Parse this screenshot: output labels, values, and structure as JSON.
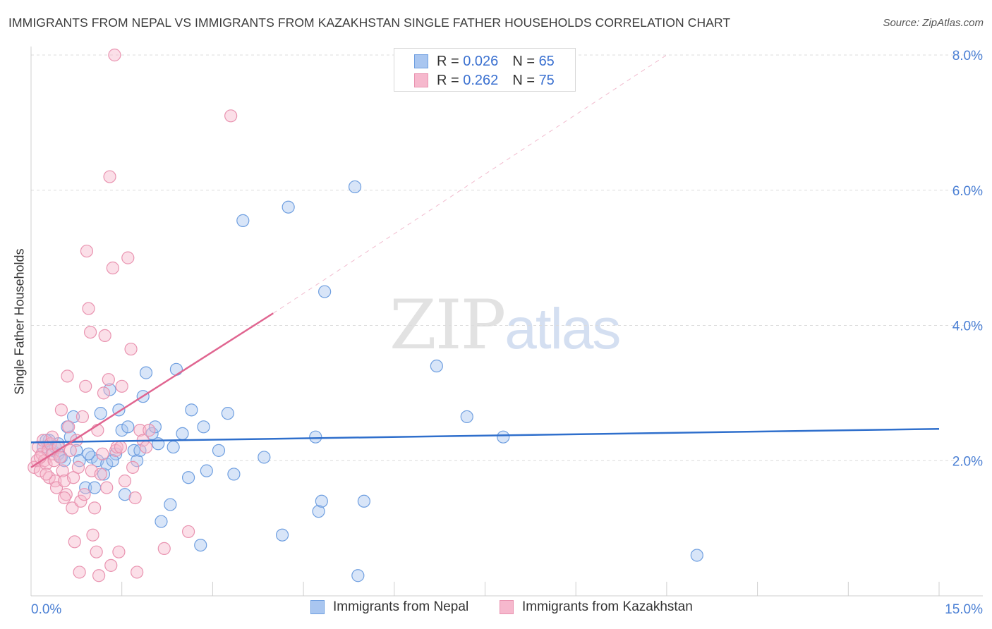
{
  "title": "IMMIGRANTS FROM NEPAL VS IMMIGRANTS FROM KAZAKHSTAN SINGLE FATHER HOUSEHOLDS CORRELATION CHART",
  "source": "Source: ZipAtlas.com",
  "watermark": {
    "zip": "ZIP",
    "atlas": "atlas"
  },
  "legend": {
    "r_label": "R =",
    "n_label": "N =",
    "series": [
      {
        "name": "Immigrants from Nepal",
        "r": "0.026",
        "n": "65"
      },
      {
        "name": "Immigrants from Kazakhstan",
        "r": "0.262",
        "n": "75"
      }
    ]
  },
  "colors": {
    "nepal_fill": "#a9c6f0",
    "nepal_stroke": "#6f9fe0",
    "nepal_line": "#2f6fcc",
    "kaz_fill": "#f6b8cd",
    "kaz_stroke": "#e993b0",
    "kaz_line": "#e06590",
    "tick_text": "#4a7fd4"
  },
  "chart_data": {
    "type": "scatter",
    "title": "IMMIGRANTS FROM NEPAL VS IMMIGRANTS FROM KAZAKHSTAN SINGLE FATHER HOUSEHOLDS CORRELATION CHART",
    "xlabel": "",
    "ylabel": "Single Father Households",
    "xlim": [
      0,
      15
    ],
    "ylim": [
      0,
      8
    ],
    "x_tick_labels": [
      "0.0%",
      "15.0%"
    ],
    "y_ticks": [
      2,
      4,
      6,
      8
    ],
    "y_tick_labels": [
      "2.0%",
      "4.0%",
      "6.0%",
      "8.0%"
    ],
    "series": [
      {
        "name": "Immigrants from Nepal",
        "r": 0.026,
        "n": 65,
        "trend": {
          "x": [
            0,
            15
          ],
          "y": [
            2.27,
            2.47
          ],
          "style": "solid"
        },
        "points": [
          [
            0.2,
            2.2
          ],
          [
            0.3,
            2.3
          ],
          [
            0.35,
            2.15
          ],
          [
            0.4,
            2.2
          ],
          [
            0.45,
            2.1
          ],
          [
            0.5,
            2.05
          ],
          [
            0.55,
            2.0
          ],
          [
            0.6,
            2.5
          ],
          [
            0.7,
            2.65
          ],
          [
            0.75,
            2.15
          ],
          [
            0.8,
            2.0
          ],
          [
            0.9,
            1.6
          ],
          [
            1.0,
            2.05
          ],
          [
            1.1,
            2.0
          ],
          [
            1.15,
            2.7
          ],
          [
            1.2,
            1.8
          ],
          [
            1.25,
            1.95
          ],
          [
            1.3,
            3.05
          ],
          [
            1.4,
            2.1
          ],
          [
            1.45,
            2.75
          ],
          [
            1.5,
            2.45
          ],
          [
            1.55,
            1.5
          ],
          [
            1.6,
            2.5
          ],
          [
            1.7,
            2.15
          ],
          [
            1.75,
            2.0
          ],
          [
            1.8,
            2.15
          ],
          [
            1.85,
            2.95
          ],
          [
            1.9,
            3.3
          ],
          [
            2.0,
            2.4
          ],
          [
            2.05,
            2.5
          ],
          [
            2.1,
            2.25
          ],
          [
            2.15,
            1.1
          ],
          [
            2.3,
            1.35
          ],
          [
            2.35,
            2.2
          ],
          [
            2.4,
            3.35
          ],
          [
            2.5,
            2.4
          ],
          [
            2.6,
            1.75
          ],
          [
            2.65,
            2.75
          ],
          [
            2.8,
            0.75
          ],
          [
            2.85,
            2.5
          ],
          [
            2.9,
            1.85
          ],
          [
            3.1,
            2.15
          ],
          [
            3.25,
            2.7
          ],
          [
            3.35,
            1.8
          ],
          [
            3.5,
            5.55
          ],
          [
            3.85,
            2.05
          ],
          [
            4.15,
            0.9
          ],
          [
            4.25,
            5.75
          ],
          [
            4.7,
            2.35
          ],
          [
            4.75,
            1.25
          ],
          [
            4.8,
            1.4
          ],
          [
            4.85,
            4.5
          ],
          [
            5.35,
            6.05
          ],
          [
            5.4,
            0.3
          ],
          [
            5.5,
            1.4
          ],
          [
            6.7,
            3.4
          ],
          [
            7.2,
            2.65
          ],
          [
            7.8,
            2.35
          ],
          [
            11.0,
            0.6
          ],
          [
            0.25,
            2.3
          ],
          [
            0.65,
            2.35
          ],
          [
            1.05,
            1.6
          ],
          [
            0.45,
            2.25
          ],
          [
            1.35,
            2.0
          ],
          [
            0.95,
            2.1
          ]
        ]
      },
      {
        "name": "Immigrants from Kazakhstan",
        "r": 0.262,
        "n": 75,
        "trend": {
          "x": [
            0,
            4.0
          ],
          "y": [
            1.9,
            4.18
          ],
          "style": "solid"
        },
        "trend_extension": {
          "x": [
            4.0,
            10.5
          ],
          "y": [
            4.18,
            8.0
          ],
          "style": "dashed"
        },
        "points": [
          [
            0.05,
            1.9
          ],
          [
            0.1,
            2.0
          ],
          [
            0.12,
            2.2
          ],
          [
            0.15,
            1.85
          ],
          [
            0.18,
            2.1
          ],
          [
            0.2,
            2.3
          ],
          [
            0.22,
            2.0
          ],
          [
            0.25,
            1.95
          ],
          [
            0.28,
            2.15
          ],
          [
            0.3,
            1.75
          ],
          [
            0.32,
            2.25
          ],
          [
            0.35,
            2.1
          ],
          [
            0.38,
            2.0
          ],
          [
            0.4,
            1.7
          ],
          [
            0.42,
            1.6
          ],
          [
            0.45,
            2.2
          ],
          [
            0.48,
            2.05
          ],
          [
            0.5,
            2.75
          ],
          [
            0.52,
            1.85
          ],
          [
            0.55,
            1.7
          ],
          [
            0.58,
            1.5
          ],
          [
            0.6,
            3.25
          ],
          [
            0.62,
            2.5
          ],
          [
            0.65,
            2.15
          ],
          [
            0.68,
            1.3
          ],
          [
            0.7,
            1.75
          ],
          [
            0.72,
            0.8
          ],
          [
            0.75,
            2.3
          ],
          [
            0.78,
            1.9
          ],
          [
            0.8,
            0.35
          ],
          [
            0.82,
            1.4
          ],
          [
            0.85,
            2.65
          ],
          [
            0.88,
            1.5
          ],
          [
            0.9,
            3.1
          ],
          [
            0.92,
            5.1
          ],
          [
            0.95,
            4.25
          ],
          [
            0.98,
            3.9
          ],
          [
            1.0,
            1.85
          ],
          [
            1.02,
            0.9
          ],
          [
            1.05,
            1.3
          ],
          [
            1.08,
            0.65
          ],
          [
            1.1,
            2.45
          ],
          [
            1.12,
            0.3
          ],
          [
            1.15,
            1.8
          ],
          [
            1.18,
            2.1
          ],
          [
            1.2,
            3.0
          ],
          [
            1.22,
            3.85
          ],
          [
            1.25,
            1.6
          ],
          [
            1.28,
            3.2
          ],
          [
            1.3,
            6.2
          ],
          [
            1.32,
            0.45
          ],
          [
            1.35,
            4.85
          ],
          [
            1.38,
            8.0
          ],
          [
            1.4,
            2.15
          ],
          [
            1.42,
            2.2
          ],
          [
            1.45,
            0.65
          ],
          [
            1.48,
            2.2
          ],
          [
            1.5,
            3.1
          ],
          [
            1.55,
            1.7
          ],
          [
            1.6,
            5.0
          ],
          [
            1.65,
            3.65
          ],
          [
            1.68,
            1.9
          ],
          [
            1.72,
            1.45
          ],
          [
            1.75,
            0.35
          ],
          [
            1.8,
            2.45
          ],
          [
            1.85,
            2.3
          ],
          [
            1.9,
            2.2
          ],
          [
            1.95,
            2.45
          ],
          [
            2.2,
            0.7
          ],
          [
            2.6,
            0.95
          ],
          [
            3.3,
            7.1
          ],
          [
            0.55,
            1.45
          ],
          [
            0.35,
            2.35
          ],
          [
            0.25,
            1.8
          ],
          [
            0.15,
            2.05
          ]
        ]
      }
    ]
  }
}
